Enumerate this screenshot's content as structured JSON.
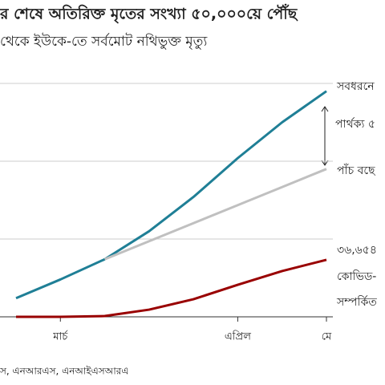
{
  "chart_data": {
    "type": "line",
    "title": "র শেষে অতিরিক্ত মৃতের সংখ্যা ৫০,০০০য়ে পৌঁছ",
    "subtitle": "থেকে ইউকে-তে সর্বমোট নথিভুক্ত মৃত্যু",
    "categories": [
      null,
      "মার্চ",
      null,
      null,
      null,
      "এপ্রিল",
      null,
      "মে"
    ],
    "series": [
      {
        "name": "সবধরনে",
        "color": "#1f7f96",
        "values": [
          12000,
          24000,
          37000,
          55000,
          77000,
          102000,
          125000,
          145000
        ]
      },
      {
        "name": "পাঁচ বছে",
        "color": "#c0c0c0",
        "values": [
          null,
          null,
          37000,
          48600,
          60200,
          71800,
          83400,
          95000
        ]
      },
      {
        "name": "কোভিড-",
        "color": "#990000",
        "values": [
          0,
          0,
          500,
          4600,
          11300,
          20600,
          29400,
          36654
        ]
      }
    ],
    "annotations": [
      "পার্থক্য ৫",
      "৩৬,৬৫৪",
      "সম্পর্কিত"
    ],
    "source": "স, এনআরএস, এনআইএসআরএ",
    "ylim": [
      0,
      150000
    ],
    "yticks": [
      0,
      50000,
      100000,
      150000
    ],
    "grid": true
  }
}
